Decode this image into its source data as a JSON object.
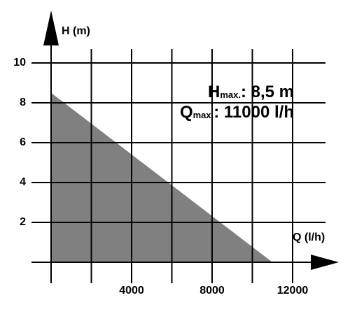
{
  "chart_data": {
    "type": "area",
    "x_label": "Q (l/h)",
    "y_label": "H (m)",
    "series": [
      {
        "x": [
          0,
          11000
        ],
        "values": [
          8.5,
          0
        ],
        "color": "#808080"
      }
    ],
    "xlim": [
      0,
      12000
    ],
    "ylim": [
      0,
      10
    ],
    "xticks": [
      4000,
      8000,
      12000
    ],
    "xgrid": [
      2000,
      4000,
      6000,
      8000,
      10000,
      12000
    ],
    "yticks": [
      2,
      4,
      6,
      8,
      10
    ],
    "grid": true,
    "annotations": [
      {
        "symbol": "H",
        "sub": "max.",
        "text": ": 8,5 m"
      },
      {
        "symbol": "Q",
        "sub": "max.",
        "text": ": 11000 l/h"
      }
    ]
  }
}
